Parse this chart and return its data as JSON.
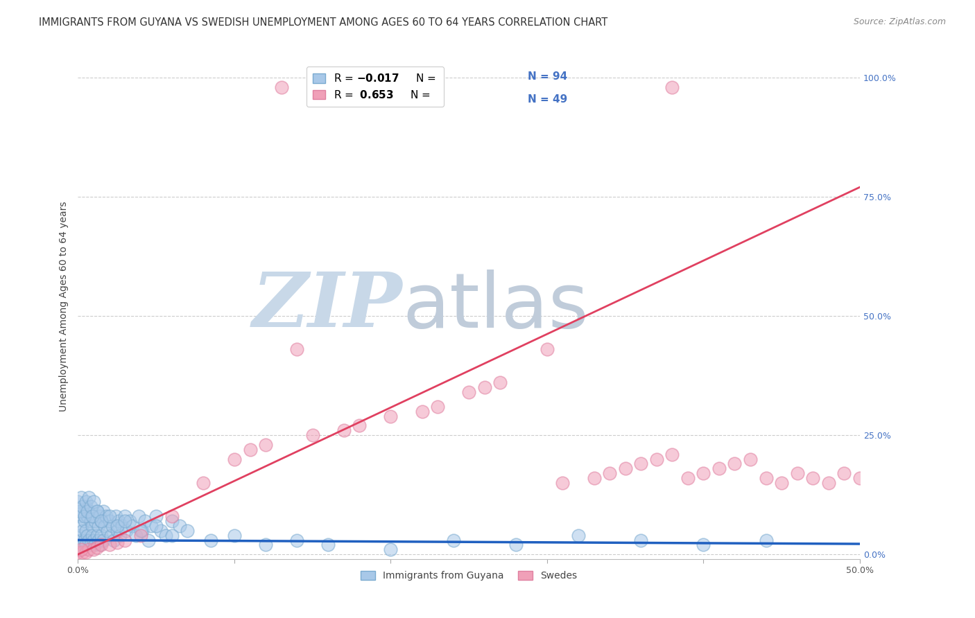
{
  "title": "IMMIGRANTS FROM GUYANA VS SWEDISH UNEMPLOYMENT AMONG AGES 60 TO 64 YEARS CORRELATION CHART",
  "source": "Source: ZipAtlas.com",
  "ylabel": "Unemployment Among Ages 60 to 64 years",
  "legend_label_blue": "Immigrants from Guyana",
  "legend_label_pink": "Swedes",
  "legend_R_blue": "-0.017",
  "legend_N_blue": "94",
  "legend_R_pink": "0.653",
  "legend_N_pink": "49",
  "blue_color": "#a8c8e8",
  "pink_color": "#f0a0b8",
  "line_blue_color": "#2060c0",
  "line_pink_color": "#e04060",
  "xlim": [
    0.0,
    0.5
  ],
  "ylim": [
    -0.01,
    1.05
  ],
  "xticks": [
    0.0,
    0.1,
    0.2,
    0.3,
    0.4,
    0.5
  ],
  "xticklabels": [
    "0.0%",
    "",
    "",
    "",
    "",
    "50.0%"
  ],
  "yticks": [
    0.0,
    0.25,
    0.5,
    0.75,
    1.0
  ],
  "yticklabels_right": [
    "0.0%",
    "25.0%",
    "50.0%",
    "75.0%",
    "100.0%"
  ],
  "grid_color": "#cccccc",
  "background_color": "#ffffff",
  "title_fontsize": 10.5,
  "source_fontsize": 9,
  "tick_fontsize": 9,
  "legend_fontsize": 11,
  "ylabel_fontsize": 10,
  "watermark_zip_color": "#c8d8e8",
  "watermark_atlas_color": "#c0ccda",
  "blue_scatter_x": [
    0.0,
    0.001,
    0.001,
    0.002,
    0.002,
    0.003,
    0.003,
    0.003,
    0.004,
    0.004,
    0.005,
    0.005,
    0.005,
    0.006,
    0.006,
    0.007,
    0.007,
    0.008,
    0.008,
    0.009,
    0.009,
    0.01,
    0.01,
    0.011,
    0.011,
    0.012,
    0.012,
    0.013,
    0.013,
    0.014,
    0.014,
    0.015,
    0.015,
    0.016,
    0.016,
    0.017,
    0.018,
    0.019,
    0.02,
    0.021,
    0.022,
    0.023,
    0.024,
    0.025,
    0.026,
    0.027,
    0.028,
    0.03,
    0.031,
    0.033,
    0.035,
    0.037,
    0.039,
    0.041,
    0.043,
    0.045,
    0.047,
    0.05,
    0.053,
    0.056,
    0.06,
    0.065,
    0.0,
    0.001,
    0.002,
    0.003,
    0.004,
    0.005,
    0.006,
    0.007,
    0.008,
    0.009,
    0.01,
    0.012,
    0.015,
    0.02,
    0.025,
    0.03,
    0.04,
    0.05,
    0.06,
    0.07,
    0.085,
    0.1,
    0.12,
    0.14,
    0.16,
    0.2,
    0.24,
    0.28,
    0.32,
    0.36,
    0.4,
    0.44
  ],
  "blue_scatter_y": [
    0.01,
    0.08,
    0.04,
    0.06,
    0.03,
    0.09,
    0.02,
    0.05,
    0.07,
    0.03,
    0.1,
    0.05,
    0.02,
    0.08,
    0.04,
    0.09,
    0.03,
    0.07,
    0.02,
    0.06,
    0.04,
    0.08,
    0.03,
    0.07,
    0.02,
    0.09,
    0.04,
    0.06,
    0.03,
    0.08,
    0.02,
    0.07,
    0.04,
    0.09,
    0.03,
    0.06,
    0.08,
    0.05,
    0.07,
    0.04,
    0.06,
    0.03,
    0.08,
    0.05,
    0.07,
    0.04,
    0.06,
    0.08,
    0.05,
    0.07,
    0.06,
    0.04,
    0.08,
    0.05,
    0.07,
    0.03,
    0.06,
    0.08,
    0.05,
    0.04,
    0.07,
    0.06,
    0.11,
    0.09,
    0.12,
    0.1,
    0.08,
    0.11,
    0.09,
    0.12,
    0.1,
    0.08,
    0.11,
    0.09,
    0.07,
    0.08,
    0.06,
    0.07,
    0.05,
    0.06,
    0.04,
    0.05,
    0.03,
    0.04,
    0.02,
    0.03,
    0.02,
    0.01,
    0.03,
    0.02,
    0.04,
    0.03,
    0.02,
    0.03
  ],
  "pink_scatter_x": [
    0.0,
    0.003,
    0.005,
    0.007,
    0.01,
    0.012,
    0.015,
    0.02,
    0.025,
    0.03,
    0.04,
    0.06,
    0.08,
    0.1,
    0.11,
    0.12,
    0.13,
    0.15,
    0.17,
    0.18,
    0.2,
    0.22,
    0.23,
    0.25,
    0.26,
    0.27,
    0.3,
    0.31,
    0.33,
    0.34,
    0.35,
    0.36,
    0.37,
    0.38,
    0.39,
    0.4,
    0.41,
    0.42,
    0.43,
    0.44,
    0.45,
    0.46,
    0.47,
    0.48,
    0.49,
    0.5,
    0.14,
    0.38,
    0.002
  ],
  "pink_scatter_y": [
    0.005,
    0.005,
    0.005,
    0.01,
    0.01,
    0.015,
    0.02,
    0.02,
    0.025,
    0.03,
    0.04,
    0.08,
    0.15,
    0.2,
    0.22,
    0.23,
    0.98,
    0.25,
    0.26,
    0.27,
    0.29,
    0.3,
    0.31,
    0.34,
    0.35,
    0.36,
    0.43,
    0.15,
    0.16,
    0.17,
    0.18,
    0.19,
    0.2,
    0.21,
    0.16,
    0.17,
    0.18,
    0.19,
    0.2,
    0.16,
    0.15,
    0.17,
    0.16,
    0.15,
    0.17,
    0.16,
    0.43,
    0.98,
    0.01
  ],
  "blue_line_x": [
    0.0,
    0.5
  ],
  "blue_line_y": [
    0.03,
    0.022
  ],
  "pink_line_x": [
    0.0,
    0.5
  ],
  "pink_line_y": [
    0.0,
    0.77
  ]
}
